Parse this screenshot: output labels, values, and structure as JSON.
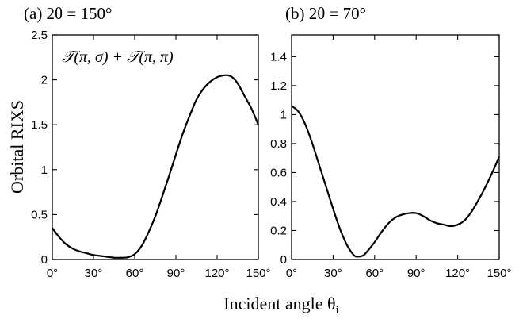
{
  "ylabel": "Orbital RIXS",
  "xlabel": "Incident angle θ",
  "xlabel_sub": "i",
  "chart_data": [
    {
      "type": "line",
      "panel_label": "(a) 2θ = 150°",
      "annotation": "𝒯(π, σ) + 𝒯(π, π)",
      "xlim": [
        0,
        150
      ],
      "ylim": [
        0,
        2.5
      ],
      "x_ticks": [
        0,
        30,
        60,
        90,
        120,
        150
      ],
      "x_tick_labels": [
        "0°",
        "30°",
        "60°",
        "90°",
        "120°",
        "150°"
      ],
      "y_ticks": [
        0,
        0.5,
        1,
        1.5,
        2,
        2.5
      ],
      "y_tick_labels": [
        "0",
        "0.5",
        "1",
        "1.5",
        "2",
        "2.5"
      ],
      "series": [
        {
          "x": [
            0,
            5,
            10,
            15,
            20,
            25,
            30,
            35,
            40,
            45,
            50,
            55,
            60,
            65,
            70,
            75,
            80,
            85,
            90,
            95,
            100,
            105,
            110,
            115,
            120,
            125,
            128,
            131,
            135,
            140,
            145,
            150
          ],
          "values": [
            0.35,
            0.25,
            0.17,
            0.12,
            0.09,
            0.07,
            0.05,
            0.04,
            0.03,
            0.02,
            0.02,
            0.025,
            0.06,
            0.15,
            0.3,
            0.48,
            0.7,
            0.93,
            1.17,
            1.4,
            1.6,
            1.78,
            1.9,
            1.98,
            2.03,
            2.05,
            2.05,
            2.03,
            1.96,
            1.82,
            1.68,
            1.5
          ]
        }
      ]
    },
    {
      "type": "line",
      "panel_label": "(b) 2θ = 70°",
      "xlim": [
        0,
        150
      ],
      "ylim": [
        0,
        1.55
      ],
      "x_ticks": [
        0,
        30,
        60,
        90,
        120,
        150
      ],
      "x_tick_labels": [
        "0°",
        "30°",
        "60°",
        "90°",
        "120°",
        "150°"
      ],
      "y_ticks": [
        0,
        0.2,
        0.4,
        0.6,
        0.8,
        1,
        1.2,
        1.4
      ],
      "y_tick_labels": [
        "0",
        "0.2",
        "0.4",
        "0.6",
        "0.8",
        "1",
        "1.2",
        "1.4"
      ],
      "series": [
        {
          "x": [
            0,
            5,
            10,
            15,
            20,
            25,
            30,
            35,
            40,
            45,
            48,
            52,
            55,
            60,
            65,
            70,
            75,
            80,
            85,
            90,
            95,
            100,
            105,
            110,
            115,
            120,
            125,
            130,
            135,
            140,
            145,
            150
          ],
          "values": [
            1.06,
            1.02,
            0.93,
            0.8,
            0.65,
            0.5,
            0.35,
            0.21,
            0.1,
            0.03,
            0.02,
            0.03,
            0.06,
            0.12,
            0.19,
            0.25,
            0.29,
            0.31,
            0.32,
            0.32,
            0.3,
            0.27,
            0.25,
            0.24,
            0.23,
            0.24,
            0.27,
            0.33,
            0.41,
            0.5,
            0.6,
            0.71
          ]
        }
      ]
    }
  ]
}
